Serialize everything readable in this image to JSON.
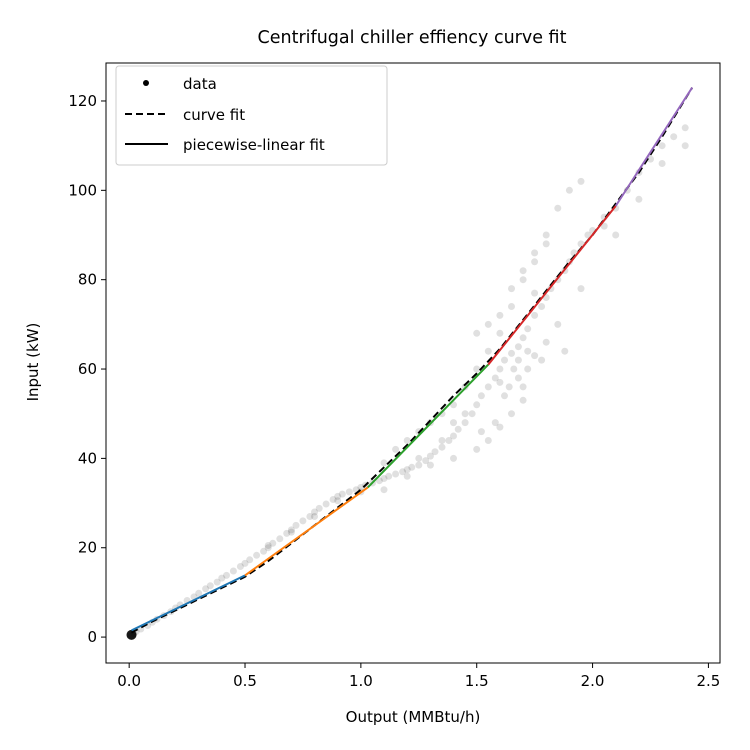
{
  "chart_data": {
    "type": "scatter",
    "title": "Centrifugal chiller effiency curve fit",
    "xlabel": "Output (MMBtu/h)",
    "ylabel": "Input (kW)",
    "xlim": [
      -0.1,
      2.55
    ],
    "ylim": [
      -5.8,
      128.5
    ],
    "x_ticks": [
      0.0,
      0.5,
      1.0,
      1.5,
      2.0,
      2.5
    ],
    "x_tick_labels": [
      "0.0",
      "0.5",
      "1.0",
      "1.5",
      "2.0",
      "2.5"
    ],
    "y_ticks": [
      0,
      20,
      40,
      60,
      80,
      100,
      120
    ],
    "y_tick_labels": [
      "0",
      "20",
      "40",
      "60",
      "80",
      "100",
      "120"
    ],
    "grid": false,
    "legend": {
      "placement": "upper-left",
      "entries": [
        {
          "label": "data",
          "style": "marker"
        },
        {
          "label": "curve fit",
          "style": "dashed"
        },
        {
          "label": "piecewise-linear fit",
          "style": "solid"
        }
      ]
    },
    "data_points": [
      [
        0.01,
        0.3
      ],
      [
        0.02,
        0.8
      ],
      [
        0.03,
        1.2
      ],
      [
        0.05,
        1.8
      ],
      [
        0.08,
        2.6
      ],
      [
        0.1,
        3.3
      ],
      [
        0.12,
        4.0
      ],
      [
        0.15,
        4.8
      ],
      [
        0.18,
        5.7
      ],
      [
        0.2,
        6.5
      ],
      [
        0.22,
        7.2
      ],
      [
        0.25,
        8.2
      ],
      [
        0.28,
        9.0
      ],
      [
        0.3,
        9.8
      ],
      [
        0.33,
        10.8
      ],
      [
        0.35,
        11.5
      ],
      [
        0.38,
        12.3
      ],
      [
        0.4,
        13.2
      ],
      [
        0.42,
        13.8
      ],
      [
        0.45,
        14.8
      ],
      [
        0.48,
        15.8
      ],
      [
        0.5,
        16.5
      ],
      [
        0.52,
        17.3
      ],
      [
        0.55,
        18.3
      ],
      [
        0.58,
        19.2
      ],
      [
        0.6,
        20.0
      ],
      [
        0.62,
        21.0
      ],
      [
        0.65,
        22.0
      ],
      [
        0.68,
        23.2
      ],
      [
        0.7,
        24.0
      ],
      [
        0.72,
        25.0
      ],
      [
        0.75,
        26.0
      ],
      [
        0.78,
        27.0
      ],
      [
        0.8,
        28.0
      ],
      [
        0.82,
        28.8
      ],
      [
        0.85,
        29.8
      ],
      [
        0.88,
        30.8
      ],
      [
        0.9,
        31.5
      ],
      [
        0.92,
        32.0
      ],
      [
        0.95,
        32.5
      ],
      [
        0.98,
        33.0
      ],
      [
        1.0,
        33.5
      ],
      [
        1.02,
        34.0
      ],
      [
        1.05,
        34.5
      ],
      [
        1.08,
        35.0
      ],
      [
        1.1,
        35.5
      ],
      [
        1.12,
        36.0
      ],
      [
        1.15,
        36.5
      ],
      [
        1.18,
        37.0
      ],
      [
        1.2,
        37.5
      ],
      [
        1.22,
        38.0
      ],
      [
        1.25,
        38.5
      ],
      [
        1.28,
        39.5
      ],
      [
        1.3,
        40.5
      ],
      [
        1.32,
        41.5
      ],
      [
        1.35,
        42.5
      ],
      [
        1.38,
        44.0
      ],
      [
        1.4,
        45.0
      ],
      [
        1.42,
        46.5
      ],
      [
        1.45,
        48.0
      ],
      [
        1.48,
        50.0
      ],
      [
        1.5,
        52.0
      ],
      [
        1.52,
        54.0
      ],
      [
        1.55,
        56.0
      ],
      [
        1.58,
        58.0
      ],
      [
        1.6,
        60.0
      ],
      [
        1.62,
        62.0
      ],
      [
        1.65,
        63.5
      ],
      [
        1.68,
        65.0
      ],
      [
        1.7,
        67.0
      ],
      [
        1.72,
        69.0
      ],
      [
        1.75,
        72.0
      ],
      [
        1.78,
        74.0
      ],
      [
        1.8,
        76.0
      ],
      [
        1.82,
        78.0
      ],
      [
        1.85,
        80.0
      ],
      [
        1.88,
        82.0
      ],
      [
        1.9,
        84.0
      ],
      [
        1.92,
        86.0
      ],
      [
        1.95,
        88.0
      ],
      [
        1.98,
        90.0
      ],
      [
        2.0,
        91.0
      ],
      [
        0.6,
        20.5
      ],
      [
        0.7,
        23.5
      ],
      [
        0.8,
        27.0
      ],
      [
        0.9,
        30.5
      ],
      [
        1.0,
        32.5
      ],
      [
        1.1,
        39.0
      ],
      [
        1.15,
        42.0
      ],
      [
        1.2,
        44.0
      ],
      [
        1.25,
        46.0
      ],
      [
        1.3,
        48.0
      ],
      [
        1.35,
        50.0
      ],
      [
        1.4,
        52.0
      ],
      [
        1.45,
        56.0
      ],
      [
        1.5,
        60.0
      ],
      [
        1.55,
        64.0
      ],
      [
        1.6,
        68.0
      ],
      [
        1.65,
        74.0
      ],
      [
        1.7,
        80.0
      ],
      [
        1.75,
        84.0
      ],
      [
        1.8,
        90.0
      ],
      [
        1.85,
        96.0
      ],
      [
        1.9,
        100.0
      ],
      [
        1.95,
        102.0
      ],
      [
        1.1,
        33.0
      ],
      [
        1.2,
        36.0
      ],
      [
        1.3,
        38.5
      ],
      [
        1.4,
        40.0
      ],
      [
        1.5,
        42.0
      ],
      [
        1.55,
        44.0
      ],
      [
        1.6,
        47.0
      ],
      [
        1.65,
        50.0
      ],
      [
        1.7,
        56.0
      ],
      [
        1.72,
        60.0
      ],
      [
        1.75,
        63.0
      ],
      [
        1.8,
        66.0
      ],
      [
        1.85,
        70.0
      ],
      [
        1.5,
        68.0
      ],
      [
        1.55,
        70.0
      ],
      [
        1.6,
        72.0
      ],
      [
        1.65,
        78.0
      ],
      [
        1.7,
        82.0
      ],
      [
        1.75,
        86.0
      ],
      [
        1.8,
        88.0
      ],
      [
        1.4,
        48.0
      ],
      [
        1.45,
        50.0
      ],
      [
        1.35,
        44.0
      ],
      [
        1.25,
        40.0
      ],
      [
        1.62,
        54.0
      ],
      [
        1.68,
        58.0
      ],
      [
        1.72,
        64.0
      ],
      [
        1.78,
        62.0
      ],
      [
        1.68,
        62.0
      ],
      [
        1.66,
        60.0
      ],
      [
        1.64,
        56.0
      ],
      [
        1.58,
        48.0
      ],
      [
        1.52,
        46.0
      ],
      [
        2.05,
        92.0
      ],
      [
        2.1,
        96.0
      ],
      [
        2.15,
        100.0
      ],
      [
        2.2,
        104.0
      ],
      [
        2.25,
        107.0
      ],
      [
        2.3,
        110.0
      ],
      [
        2.35,
        112.0
      ],
      [
        2.4,
        114.0
      ],
      [
        2.2,
        98.0
      ],
      [
        2.3,
        106.0
      ],
      [
        2.4,
        110.0
      ],
      [
        2.05,
        94.0
      ],
      [
        2.1,
        90.0
      ],
      [
        1.75,
        77.0
      ],
      [
        1.6,
        57.0
      ],
      [
        1.7,
        53.0
      ],
      [
        1.88,
        64.0
      ],
      [
        1.95,
        78.0
      ]
    ],
    "series": [
      {
        "label": "curve fit",
        "style": "dashed",
        "color": "#000000",
        "x": [
          0.01,
          0.1,
          0.2,
          0.3,
          0.4,
          0.5,
          0.6,
          0.7,
          0.8,
          0.9,
          1.0,
          1.1,
          1.2,
          1.3,
          1.4,
          1.5,
          1.6,
          1.7,
          1.8,
          1.9,
          2.0,
          2.1,
          2.2,
          2.3,
          2.43
        ],
        "y": [
          1.0,
          3.5,
          6.0,
          8.5,
          11.0,
          13.5,
          17.0,
          21.0,
          25.0,
          29.0,
          33.0,
          38.0,
          43.0,
          48.5,
          54.0,
          59.0,
          64.5,
          71.0,
          77.5,
          84.0,
          90.0,
          97.0,
          104.0,
          112.0,
          123.0
        ]
      },
      {
        "label": "piecewise-linear fit",
        "style": "solid",
        "segments": [
          {
            "color": "#1f77b4",
            "x": [
              0.01,
              0.5
            ],
            "y": [
              1.5,
              13.8
            ]
          },
          {
            "color": "#ff7f0e",
            "x": [
              0.5,
              1.03
            ],
            "y": [
              13.8,
              33.5
            ]
          },
          {
            "color": "#2ca02c",
            "x": [
              1.03,
              1.55
            ],
            "y": [
              33.5,
              61.0
            ]
          },
          {
            "color": "#d62728",
            "x": [
              1.55,
              2.1
            ],
            "y": [
              61.0,
              96.5
            ]
          },
          {
            "color": "#9467bd",
            "x": [
              2.1,
              2.43
            ],
            "y": [
              96.5,
              123.0
            ]
          }
        ]
      }
    ]
  }
}
